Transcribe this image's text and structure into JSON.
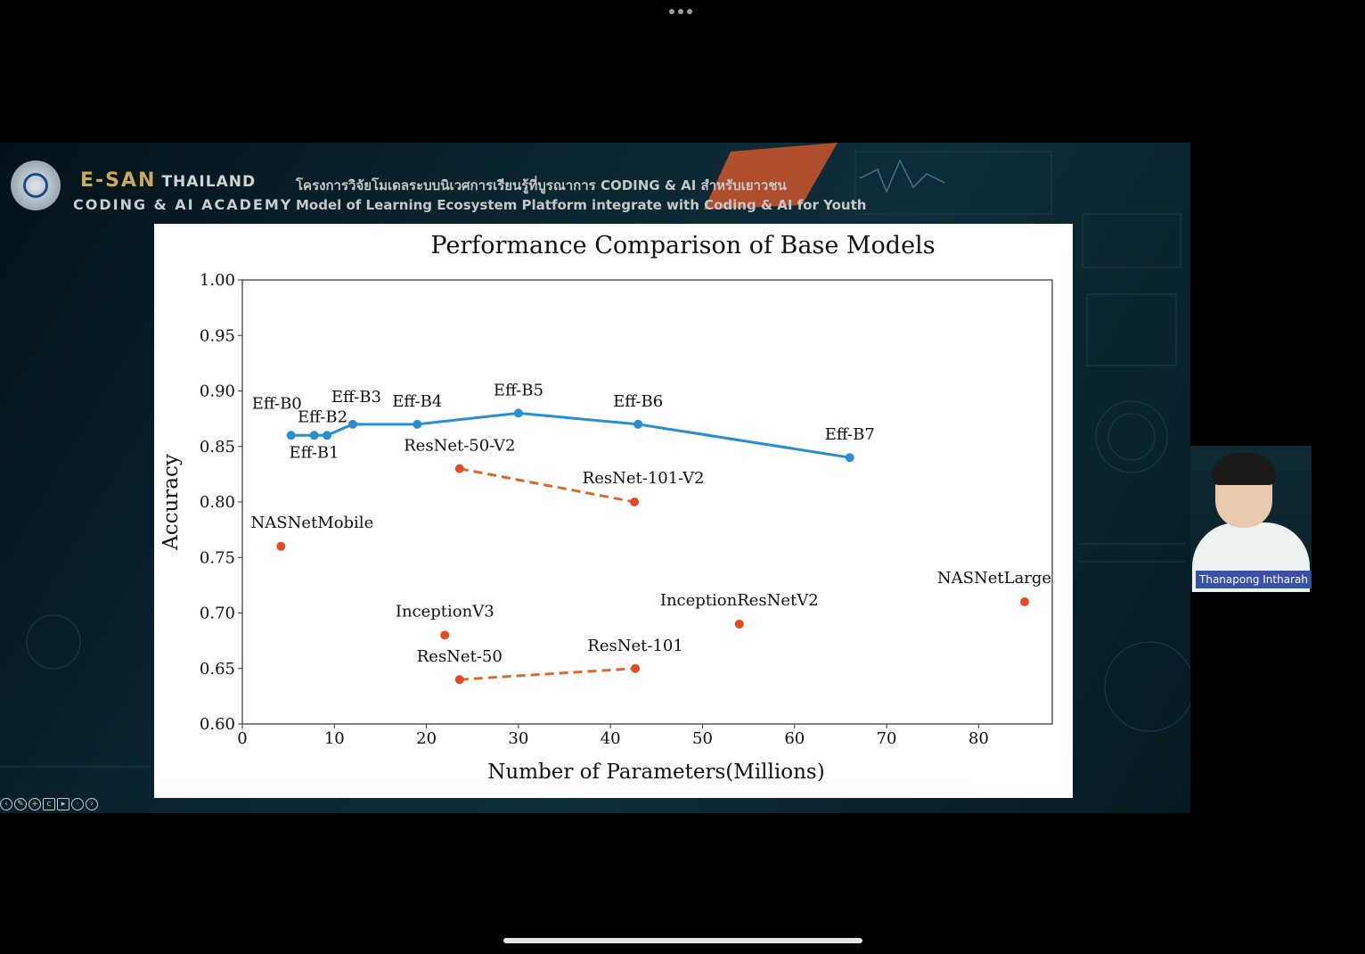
{
  "screen": {
    "presenter_name": "Thanapong Intharah"
  },
  "slide": {
    "brand_name": "E-SAN",
    "brand_country": "THAILAND",
    "brand_subtitle": "CODING & AI ACADEMY",
    "tagline_thai": "โครงการวิจัยโมเดลระบบนิเวศการเรียนรู้ที่บูรณาการ CODING & AI สำหรับเยาวชน",
    "tagline_en": "Model of Learning Ecosystem Platform integrate with Coding & AI for Youth"
  },
  "icons": [
    "more-dots-icon",
    "prev-icon",
    "pen-icon",
    "zoom-icon",
    "captions-icon",
    "video-icon",
    "more-icon",
    "next-icon"
  ],
  "chart_data": {
    "type": "scatter",
    "title": "Performance Comparison of Base Models",
    "xlabel": "Number of Parameters(Millions)",
    "ylabel": "Accuracy",
    "xlim": [
      0,
      88
    ],
    "ylim": [
      0.6,
      1.0
    ],
    "xticks": [
      0,
      10,
      20,
      30,
      40,
      50,
      60,
      70,
      80
    ],
    "yticks": [
      0.6,
      0.65,
      0.7,
      0.75,
      0.8,
      0.85,
      0.9,
      0.95,
      1.0
    ],
    "grid": false,
    "colors": {
      "efficientnet": "#2a8fd0",
      "other": "#e34a24",
      "resnet_line": "#d66a2e"
    },
    "series": [
      {
        "style": "line-solid",
        "points": [
          {
            "label": "Eff-B0",
            "x": 5.3,
            "y": 0.86
          },
          {
            "label": "Eff-B1",
            "x": 7.8,
            "y": 0.86
          },
          {
            "label": "Eff-B2",
            "x": 9.2,
            "y": 0.86
          },
          {
            "label": "Eff-B3",
            "x": 12,
            "y": 0.87
          },
          {
            "label": "Eff-B4",
            "x": 19,
            "y": 0.87
          },
          {
            "label": "Eff-B5",
            "x": 30,
            "y": 0.88
          },
          {
            "label": "Eff-B6",
            "x": 43,
            "y": 0.87
          },
          {
            "label": "Eff-B7",
            "x": 66,
            "y": 0.84
          }
        ]
      },
      {
        "style": "line-dashed",
        "points": [
          {
            "label": "ResNet-50-V2",
            "x": 23.6,
            "y": 0.83
          },
          {
            "label": "ResNet-101-V2",
            "x": 42.6,
            "y": 0.8
          }
        ]
      },
      {
        "style": "line-dashed",
        "points": [
          {
            "label": "ResNet-50",
            "x": 23.6,
            "y": 0.64
          },
          {
            "label": "ResNet-101",
            "x": 42.7,
            "y": 0.65
          }
        ]
      },
      {
        "style": "points",
        "points": [
          {
            "label": "NASNetMobile",
            "x": 4.2,
            "y": 0.76
          },
          {
            "label": "InceptionV3",
            "x": 22,
            "y": 0.68
          },
          {
            "label": "InceptionResNetV2",
            "x": 54,
            "y": 0.69
          },
          {
            "label": "NASNetLarge",
            "x": 85,
            "y": 0.71
          }
        ]
      }
    ]
  }
}
